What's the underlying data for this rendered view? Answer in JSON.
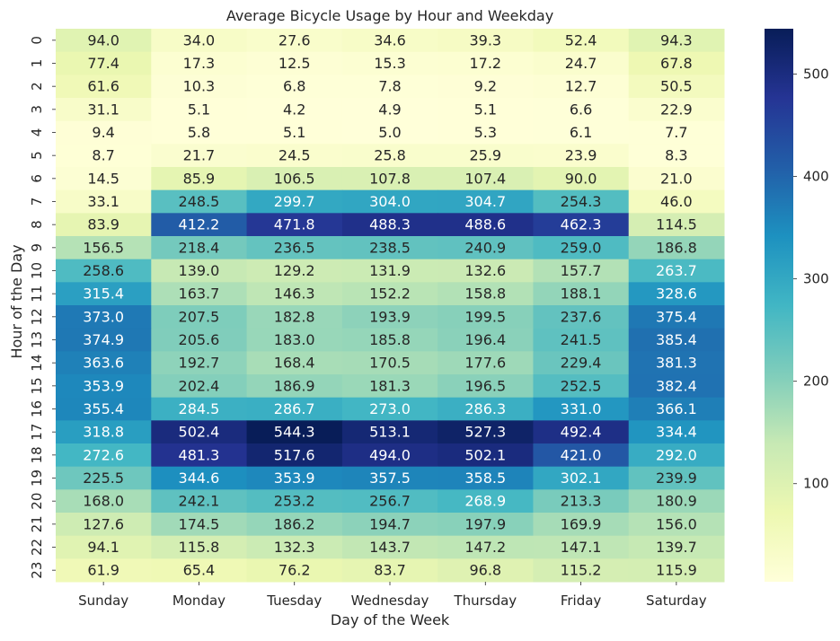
{
  "chart_data": {
    "type": "heatmap",
    "title": "Average Bicycle Usage by Hour and Weekday",
    "xlabel": "Day of the Week",
    "ylabel": "Hour of the Day",
    "x_categories": [
      "Sunday",
      "Monday",
      "Tuesday",
      "Wednesday",
      "Thursday",
      "Friday",
      "Saturday"
    ],
    "y_categories": [
      "0",
      "1",
      "2",
      "3",
      "4",
      "5",
      "6",
      "7",
      "8",
      "9",
      "10",
      "11",
      "12",
      "13",
      "14",
      "15",
      "16",
      "17",
      "18",
      "19",
      "20",
      "21",
      "22",
      "23"
    ],
    "values": [
      [
        94.0,
        34.0,
        27.6,
        34.6,
        39.3,
        52.4,
        94.3
      ],
      [
        77.4,
        17.3,
        12.5,
        15.3,
        17.2,
        24.7,
        67.8
      ],
      [
        61.6,
        10.3,
        6.8,
        7.8,
        9.2,
        12.7,
        50.5
      ],
      [
        31.1,
        5.1,
        4.2,
        4.9,
        5.1,
        6.6,
        22.9
      ],
      [
        9.4,
        5.8,
        5.1,
        5.0,
        5.3,
        6.1,
        7.7
      ],
      [
        8.7,
        21.7,
        24.5,
        25.8,
        25.9,
        23.9,
        8.3
      ],
      [
        14.5,
        85.9,
        106.5,
        107.8,
        107.4,
        90.0,
        21.0
      ],
      [
        33.1,
        248.5,
        299.7,
        304.0,
        304.7,
        254.3,
        46.0
      ],
      [
        83.9,
        412.2,
        471.8,
        488.3,
        488.6,
        462.3,
        114.5
      ],
      [
        156.5,
        218.4,
        236.5,
        238.5,
        240.9,
        259.0,
        186.8
      ],
      [
        258.6,
        139.0,
        129.2,
        131.9,
        132.6,
        157.7,
        263.7
      ],
      [
        315.4,
        163.7,
        146.3,
        152.2,
        158.8,
        188.1,
        328.6
      ],
      [
        373.0,
        207.5,
        182.8,
        193.9,
        199.5,
        237.6,
        375.4
      ],
      [
        374.9,
        205.6,
        183.0,
        185.8,
        196.4,
        241.5,
        385.4
      ],
      [
        363.6,
        192.7,
        168.4,
        170.5,
        177.6,
        229.4,
        381.3
      ],
      [
        353.9,
        202.4,
        186.9,
        181.3,
        196.5,
        252.5,
        382.4
      ],
      [
        355.4,
        284.5,
        286.7,
        273.0,
        286.3,
        331.0,
        366.1
      ],
      [
        318.8,
        502.4,
        544.3,
        513.1,
        527.3,
        492.4,
        334.4
      ],
      [
        272.6,
        481.3,
        517.6,
        494.0,
        502.1,
        421.0,
        292.0
      ],
      [
        225.5,
        344.6,
        353.9,
        357.5,
        358.5,
        302.1,
        239.9
      ],
      [
        168.0,
        242.1,
        253.2,
        256.7,
        268.9,
        213.3,
        180.9
      ],
      [
        127.6,
        174.5,
        186.2,
        194.7,
        197.9,
        169.9,
        156.0
      ],
      [
        94.1,
        115.8,
        132.3,
        143.7,
        147.2,
        147.1,
        139.7
      ],
      [
        61.9,
        65.4,
        76.2,
        83.7,
        96.8,
        115.2,
        115.9
      ]
    ],
    "value_format": "0.1f",
    "colormap": "YlGnBu",
    "colorbar": {
      "ticks": [
        100,
        200,
        300,
        400,
        500
      ],
      "min": 4.2,
      "max": 544.3
    },
    "grid": false
  }
}
